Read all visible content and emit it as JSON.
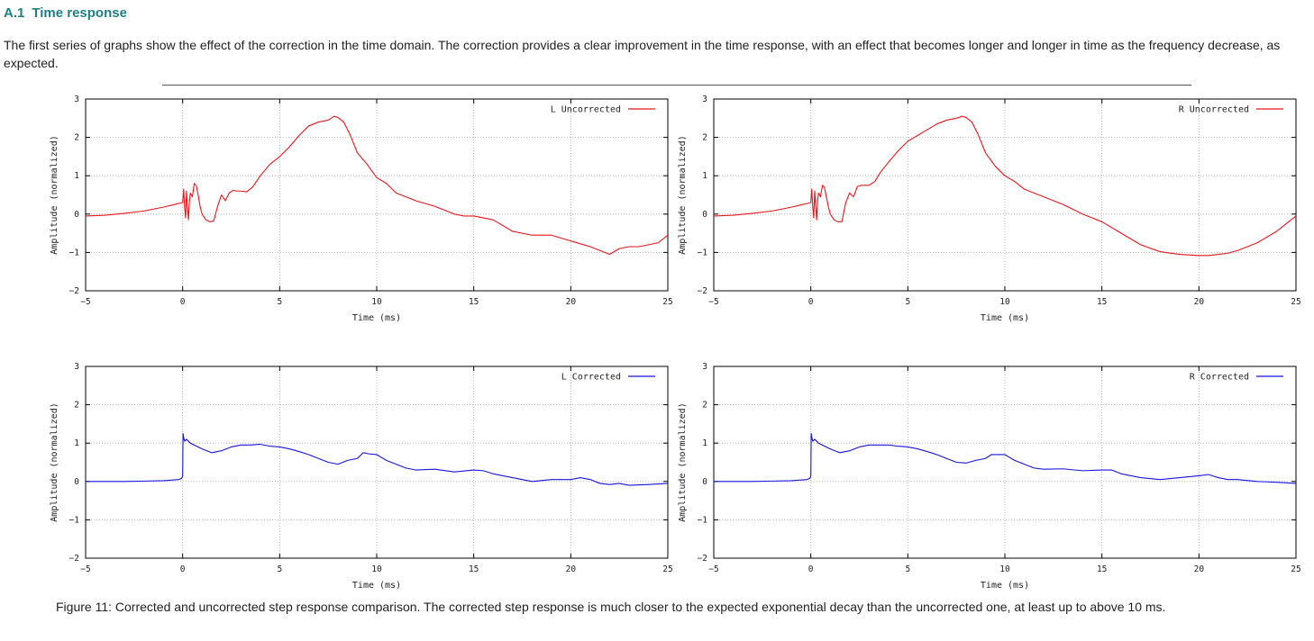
{
  "section": {
    "number": "A.1",
    "title": "Time response"
  },
  "intro_text": "The first series of graphs show the effect of the correction in the time domain. The correction provides a clear improvement in the time response, with an effect that becomes longer and longer in time as the frequency decrease, as expected.",
  "caption": "Figure 11: Corrected and uncorrected step response comparison. The corrected step response is much closer to the expected exponential decay than the uncorrected one, at least up to above 10 ms.",
  "colors": {
    "heading": "#1f7f86",
    "uncorrected": "#e8161b",
    "corrected": "#1515e0",
    "grid": "#a8a8a8",
    "frame": "#000000"
  },
  "chart_data": [
    {
      "type": "line",
      "xlabel": "Time (ms)",
      "ylabel": "Amplitude (normalized)",
      "xlim": [
        -5,
        25
      ],
      "ylim": [
        -2,
        3
      ],
      "xticks": [
        -5,
        0,
        5,
        10,
        15,
        20,
        25
      ],
      "yticks": [
        -2,
        -1,
        0,
        1,
        2,
        3
      ],
      "grid": true,
      "legend_position": "top-right",
      "series": [
        {
          "name": "L Uncorrected",
          "color": "#e8161b",
          "x": [
            -5,
            -4,
            -3,
            -2,
            -1,
            -0.5,
            0,
            0.05,
            0.1,
            0.15,
            0.2,
            0.25,
            0.3,
            0.35,
            0.4,
            0.5,
            0.6,
            0.7,
            0.8,
            0.9,
            1.0,
            1.2,
            1.4,
            1.6,
            1.8,
            2.0,
            2.2,
            2.4,
            2.6,
            2.8,
            3.0,
            3.3,
            3.6,
            4.0,
            4.5,
            5.0,
            5.5,
            6.0,
            6.5,
            7.0,
            7.5,
            7.8,
            8.0,
            8.3,
            8.6,
            9.0,
            9.5,
            10.0,
            10.5,
            11.0,
            11.5,
            12.0,
            13.0,
            14.0,
            14.5,
            15.0,
            16.0,
            17.0,
            18.0,
            19.0,
            20.0,
            21.0,
            21.5,
            22.0,
            22.5,
            23.0,
            23.5,
            24.0,
            24.5,
            25.0
          ],
          "y": [
            -0.05,
            -0.03,
            0.02,
            0.08,
            0.18,
            0.24,
            0.3,
            0.65,
            0.2,
            -0.1,
            0.6,
            0.2,
            -0.15,
            0.35,
            0.55,
            0.45,
            0.8,
            0.75,
            0.5,
            0.2,
            0.0,
            -0.15,
            -0.2,
            -0.18,
            0.2,
            0.5,
            0.35,
            0.55,
            0.62,
            0.6,
            0.6,
            0.58,
            0.7,
            1.0,
            1.3,
            1.5,
            1.75,
            2.05,
            2.3,
            2.4,
            2.45,
            2.55,
            2.52,
            2.4,
            2.1,
            1.6,
            1.3,
            0.95,
            0.8,
            0.55,
            0.45,
            0.35,
            0.2,
            0.0,
            -0.05,
            -0.05,
            -0.15,
            -0.45,
            -0.55,
            -0.55,
            -0.7,
            -0.85,
            -0.95,
            -1.05,
            -0.9,
            -0.85,
            -0.85,
            -0.8,
            -0.75,
            -0.55
          ]
        }
      ]
    },
    {
      "type": "line",
      "xlabel": "Time (ms)",
      "ylabel": "Amplitude (normalized)",
      "xlim": [
        -5,
        25
      ],
      "ylim": [
        -2,
        3
      ],
      "xticks": [
        -5,
        0,
        5,
        10,
        15,
        20,
        25
      ],
      "yticks": [
        -2,
        -1,
        0,
        1,
        2,
        3
      ],
      "grid": true,
      "legend_position": "top-right",
      "series": [
        {
          "name": "R Uncorrected",
          "color": "#e8161b",
          "x": [
            -5,
            -4,
            -3,
            -2,
            -1,
            -0.5,
            0,
            0.05,
            0.1,
            0.15,
            0.2,
            0.25,
            0.3,
            0.35,
            0.4,
            0.5,
            0.6,
            0.7,
            0.8,
            0.9,
            1.0,
            1.2,
            1.4,
            1.6,
            1.8,
            2.0,
            2.2,
            2.4,
            2.6,
            2.8,
            3.0,
            3.3,
            3.6,
            4.0,
            4.5,
            5.0,
            5.5,
            6.0,
            6.5,
            7.0,
            7.5,
            7.8,
            8.0,
            8.3,
            8.6,
            9.0,
            9.5,
            10.0,
            10.5,
            11.0,
            11.5,
            12.0,
            13.0,
            14.0,
            15.0,
            16.0,
            17.0,
            18.0,
            19.0,
            20.0,
            20.5,
            21.0,
            21.5,
            22.0,
            23.0,
            24.0,
            24.5,
            25.0
          ],
          "y": [
            -0.05,
            -0.03,
            0.02,
            0.08,
            0.18,
            0.24,
            0.3,
            0.65,
            0.2,
            -0.1,
            0.6,
            0.2,
            -0.15,
            0.35,
            0.55,
            0.45,
            0.75,
            0.7,
            0.45,
            0.2,
            0.0,
            -0.15,
            -0.2,
            -0.2,
            0.3,
            0.55,
            0.45,
            0.72,
            0.75,
            0.75,
            0.75,
            0.85,
            1.1,
            1.35,
            1.65,
            1.9,
            2.05,
            2.2,
            2.35,
            2.45,
            2.5,
            2.55,
            2.52,
            2.4,
            2.1,
            1.6,
            1.25,
            1.0,
            0.85,
            0.65,
            0.55,
            0.45,
            0.25,
            0.0,
            -0.2,
            -0.5,
            -0.8,
            -0.98,
            -1.05,
            -1.08,
            -1.08,
            -1.05,
            -1.02,
            -0.95,
            -0.75,
            -0.45,
            -0.25,
            -0.05
          ]
        }
      ]
    },
    {
      "type": "line",
      "xlabel": "Time (ms)",
      "ylabel": "Amplitude (normalized)",
      "xlim": [
        -5,
        25
      ],
      "ylim": [
        -2,
        3
      ],
      "xticks": [
        -5,
        0,
        5,
        10,
        15,
        20,
        25
      ],
      "yticks": [
        -2,
        -1,
        0,
        1,
        2,
        3
      ],
      "grid": true,
      "legend_position": "top-right",
      "series": [
        {
          "name": "L Corrected",
          "color": "#1515e0",
          "x": [
            -5,
            -4,
            -3,
            -2,
            -1,
            -0.2,
            -0.05,
            0,
            0.02,
            0.05,
            0.1,
            0.2,
            0.4,
            0.6,
            1.0,
            1.5,
            2.0,
            2.5,
            3.0,
            3.5,
            4.0,
            4.5,
            5.0,
            5.5,
            6.0,
            6.5,
            7.0,
            7.5,
            8.0,
            8.5,
            9.0,
            9.3,
            9.6,
            10.0,
            10.5,
            11.0,
            11.5,
            12.0,
            13.0,
            14.0,
            15.0,
            15.5,
            16.0,
            17.0,
            18.0,
            19.0,
            20.0,
            20.5,
            21.0,
            21.5,
            22.0,
            22.5,
            23.0,
            24.0,
            25.0
          ],
          "y": [
            0.0,
            0.0,
            0.0,
            0.01,
            0.02,
            0.05,
            0.08,
            0.15,
            1.25,
            1.15,
            1.05,
            1.1,
            1.0,
            0.95,
            0.85,
            0.75,
            0.8,
            0.9,
            0.95,
            0.95,
            0.97,
            0.92,
            0.9,
            0.85,
            0.78,
            0.7,
            0.6,
            0.5,
            0.45,
            0.55,
            0.6,
            0.75,
            0.72,
            0.7,
            0.55,
            0.45,
            0.35,
            0.3,
            0.32,
            0.25,
            0.3,
            0.28,
            0.2,
            0.1,
            0.0,
            0.05,
            0.05,
            0.1,
            0.05,
            -0.05,
            -0.08,
            -0.05,
            -0.1,
            -0.08,
            -0.05
          ]
        }
      ]
    },
    {
      "type": "line",
      "xlabel": "Time (ms)",
      "ylabel": "Amplitude (normalized)",
      "xlim": [
        -5,
        25
      ],
      "ylim": [
        -2,
        3
      ],
      "xticks": [
        -5,
        0,
        5,
        10,
        15,
        20,
        25
      ],
      "yticks": [
        -2,
        -1,
        0,
        1,
        2,
        3
      ],
      "grid": true,
      "legend_position": "top-right",
      "series": [
        {
          "name": "R Corrected",
          "color": "#1515e0",
          "x": [
            -5,
            -4,
            -3,
            -2,
            -1,
            -0.2,
            -0.05,
            0,
            0.02,
            0.05,
            0.1,
            0.2,
            0.4,
            0.6,
            1.0,
            1.5,
            2.0,
            2.5,
            3.0,
            3.5,
            4.0,
            4.5,
            5.0,
            5.5,
            6.0,
            6.5,
            7.0,
            7.5,
            8.0,
            8.5,
            9.0,
            9.3,
            9.6,
            10.0,
            10.5,
            11.0,
            11.5,
            12.0,
            13.0,
            14.0,
            15.0,
            15.5,
            16.0,
            17.0,
            18.0,
            19.0,
            20.0,
            20.5,
            21.0,
            21.5,
            22.0,
            23.0,
            24.0,
            25.0
          ],
          "y": [
            0.0,
            0.0,
            0.0,
            0.01,
            0.02,
            0.05,
            0.08,
            0.15,
            1.25,
            1.15,
            1.05,
            1.1,
            1.0,
            0.95,
            0.85,
            0.75,
            0.8,
            0.9,
            0.95,
            0.95,
            0.95,
            0.92,
            0.9,
            0.85,
            0.78,
            0.7,
            0.6,
            0.5,
            0.48,
            0.55,
            0.6,
            0.7,
            0.7,
            0.7,
            0.55,
            0.45,
            0.35,
            0.32,
            0.33,
            0.28,
            0.3,
            0.3,
            0.2,
            0.1,
            0.05,
            0.1,
            0.15,
            0.18,
            0.1,
            0.05,
            0.05,
            0.0,
            -0.02,
            -0.05
          ]
        }
      ]
    }
  ]
}
